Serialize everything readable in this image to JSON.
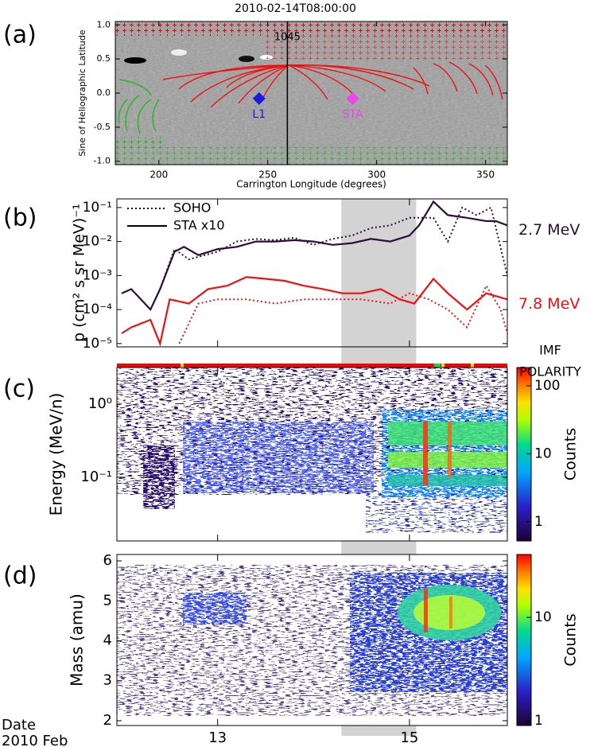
{
  "chart_data": [
    {
      "type": "synoptic-map",
      "panel_label": "(a)",
      "title": "2010-02-14T08:00:00",
      "xlabel": "Carrington Longitude (degrees)",
      "ylabel": "Sine of Heliographic Latitude",
      "xlim": [
        180,
        360
      ],
      "xticks": [
        200,
        250,
        300,
        350
      ],
      "ylim": [
        -1.05,
        1.05
      ],
      "yticks": [
        {
          "value": -1,
          "label": "-1.0"
        },
        {
          "value": -0.5,
          "label": "-0.5"
        },
        {
          "value": 0,
          "label": "0.0"
        },
        {
          "value": 0.5,
          "label": "0.5"
        },
        {
          "value": 1,
          "label": "1.0"
        }
      ],
      "points": [
        {
          "name": "L1",
          "x": 246,
          "y": -0.08,
          "color": "#1a1ae0"
        },
        {
          "name": "STA",
          "x": 289,
          "y": -0.08,
          "color": "#ee44ee"
        }
      ],
      "annotations": [
        {
          "text": "1045",
          "x": 259
        }
      ]
    },
    {
      "type": "line",
      "panel_label": "(b)",
      "ylabel": "p (cm² s sr MeV)⁻¹",
      "log_y": true,
      "xlim": [
        11.95,
        16.02
      ],
      "ylim": [
        8e-06,
        0.18
      ],
      "yticks": [
        {
          "value": 1e-05,
          "label": "10⁻⁵"
        },
        {
          "value": 0.0001,
          "label": "10⁻⁴"
        },
        {
          "value": 0.001,
          "label": "10⁻³"
        },
        {
          "value": 0.01,
          "label": "10⁻²"
        },
        {
          "value": 0.1,
          "label": "10⁻¹"
        }
      ],
      "shaded": [
        14.29,
        15.07
      ],
      "legend": [
        {
          "name": "SOHO",
          "dash": "2,3"
        },
        {
          "name": "STA x10",
          "dash": "none"
        }
      ],
      "energies": [
        {
          "label": "2.7 MeV",
          "color": "#2e0c3b"
        },
        {
          "label": "7.8 MeV",
          "color": "#ee1111"
        }
      ],
      "series": [
        {
          "legend": 1,
          "energy": 0,
          "x": [
            12.0,
            12.1,
            12.3,
            12.4,
            12.55,
            12.65,
            12.8,
            13.0,
            13.2,
            13.4,
            13.6,
            13.8,
            14.0,
            14.2,
            14.4,
            14.6,
            14.8,
            15.0,
            15.1,
            15.25,
            15.4,
            15.6,
            15.8,
            15.9,
            16.02
          ],
          "values": [
            0.0003,
            0.0004,
            0.0001,
            0.0004,
            0.005,
            0.007,
            0.004,
            0.006,
            0.007,
            0.01,
            0.01,
            0.011,
            0.01,
            0.008,
            0.009,
            0.012,
            0.01,
            0.015,
            0.03,
            0.15,
            0.06,
            0.05,
            0.04,
            0.04,
            0.03
          ]
        },
        {
          "legend": 0,
          "energy": 0,
          "x": [
            12.4,
            12.55,
            12.7,
            13.0,
            13.2,
            13.4,
            13.6,
            13.8,
            14.0,
            14.2,
            14.4,
            14.6,
            14.8,
            15.0,
            15.1,
            15.25,
            15.4,
            15.55,
            15.7,
            15.85,
            16.02
          ],
          "values": [
            0.0004,
            0.006,
            0.003,
            0.005,
            0.01,
            0.012,
            0.011,
            0.013,
            0.008,
            0.012,
            0.015,
            0.025,
            0.03,
            0.05,
            0.05,
            0.05,
            0.01,
            0.1,
            0.06,
            0.1,
            0.001
          ]
        },
        {
          "legend": 1,
          "energy": 1,
          "x": [
            12.0,
            12.1,
            12.3,
            12.4,
            12.5,
            12.7,
            12.9,
            13.1,
            13.3,
            13.5,
            13.7,
            13.9,
            14.1,
            14.3,
            14.5,
            14.7,
            14.9,
            15.05,
            15.25,
            15.4,
            15.6,
            15.8,
            16.02
          ],
          "values": [
            2e-05,
            3e-05,
            5e-05,
            1e-05,
            0.0002,
            0.00015,
            0.0004,
            0.0005,
            0.0009,
            0.0008,
            0.0007,
            0.0005,
            0.0004,
            0.0003,
            0.0003,
            0.0004,
            0.0002,
            0.00015,
            0.0008,
            0.0003,
            0.0001,
            0.0003,
            0.0002
          ]
        },
        {
          "legend": 0,
          "energy": 1,
          "x": [
            12.6,
            12.8,
            13.0,
            13.3,
            13.6,
            13.9,
            14.2,
            14.5,
            14.8,
            15.0,
            15.2,
            15.4,
            15.6,
            15.8,
            15.95,
            16.02
          ],
          "values": [
            1e-05,
            0.00015,
            0.0002,
            0.0002,
            0.00015,
            0.0002,
            0.0002,
            0.0002,
            0.00015,
            0.0003,
            0.0002,
            0.0001,
            3e-05,
            0.0005,
            0.0001,
            2e-05
          ]
        }
      ]
    },
    {
      "type": "spectrogram",
      "panel_label": "(c)",
      "ylabel": "Energy (MeV/n)",
      "log_y": true,
      "imf_polarity_label": [
        "IMF",
        "POLARITY"
      ],
      "ylim": [
        0.0134,
        3.16
      ],
      "yticks": [
        {
          "value": 0.1,
          "label": "10⁻¹"
        },
        {
          "value": 1,
          "label": "10⁰"
        }
      ],
      "colorbar": {
        "label": "Counts",
        "log": true,
        "lim": [
          0.52,
          186
        ],
        "ticks": [
          1,
          10,
          100
        ]
      }
    },
    {
      "type": "spectrogram",
      "panel_label": "(d)",
      "ylabel": "Mass (amu)",
      "ylim": [
        1.88,
        6.16
      ],
      "yticks": [
        2,
        3,
        4,
        5,
        6
      ],
      "xlim": [
        11.95,
        16.02
      ],
      "xticks": [
        13,
        15
      ],
      "x_title": [
        "Date",
        "2010 Feb"
      ],
      "colorbar": {
        "label": "Counts",
        "log": true,
        "lim": [
          0.9,
          40.6
        ],
        "ticks": [
          1,
          10
        ]
      }
    }
  ]
}
